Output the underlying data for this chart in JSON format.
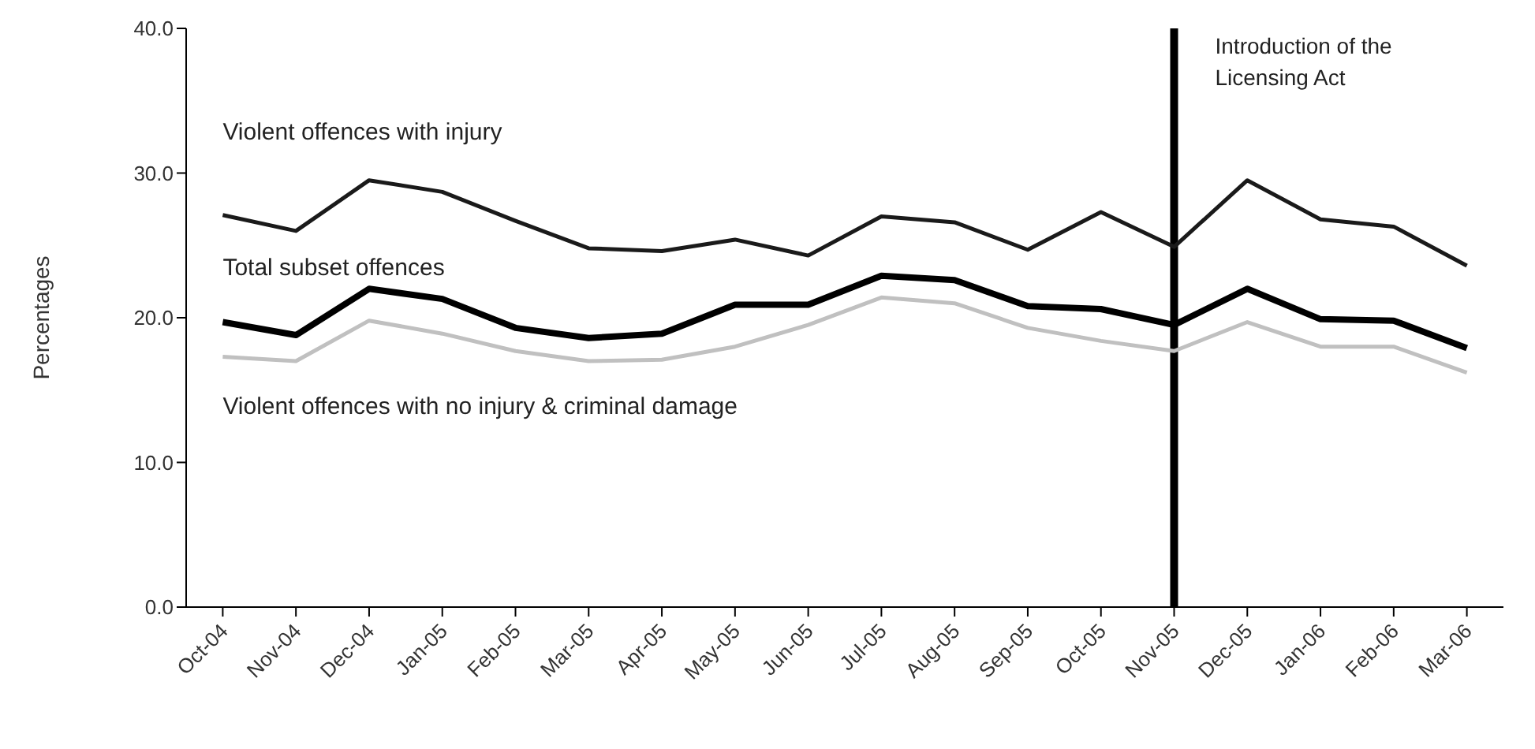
{
  "chart_data": {
    "type": "line",
    "ylabel": "Percentages",
    "categories": [
      "Oct-04",
      "Nov-04",
      "Dec-04",
      "Jan-05",
      "Feb-05",
      "Mar-05",
      "Apr-05",
      "May-05",
      "Jun-05",
      "Jul-05",
      "Aug-05",
      "Sep-05",
      "Oct-05",
      "Nov-05",
      "Dec-05",
      "Jan-06",
      "Feb-06",
      "Mar-06"
    ],
    "series": [
      {
        "name": "Violent offences with injury",
        "color": "#1a1a1a",
        "values": [
          27.1,
          26.0,
          29.5,
          28.7,
          26.7,
          24.8,
          24.6,
          25.4,
          24.3,
          27.0,
          26.6,
          24.7,
          27.3,
          24.9,
          29.5,
          26.8,
          26.3,
          23.6
        ]
      },
      {
        "name": "Total subset offences",
        "color": "#000000",
        "values": [
          19.7,
          18.8,
          22.0,
          21.3,
          19.3,
          18.6,
          18.9,
          20.9,
          20.9,
          22.9,
          22.6,
          20.8,
          20.6,
          19.5,
          22.0,
          19.9,
          19.8,
          17.9
        ]
      },
      {
        "name": "Violent offences with no injury & criminal damage",
        "color": "#c0c0c0",
        "values": [
          17.3,
          17.0,
          19.8,
          18.9,
          17.7,
          17.0,
          17.1,
          18.0,
          19.5,
          21.4,
          21.0,
          19.3,
          18.4,
          17.7,
          19.7,
          18.0,
          18.0,
          16.2
        ]
      }
    ],
    "ylim": [
      0,
      40
    ],
    "yticks": [
      {
        "value": 0,
        "label": "0.0"
      },
      {
        "value": 10,
        "label": "10.0"
      },
      {
        "value": 20,
        "label": "20.0"
      },
      {
        "value": 30,
        "label": "30.0"
      },
      {
        "value": 40,
        "label": "40.0"
      }
    ],
    "ref_lines": [
      {
        "axis": "x",
        "value": "Nov-05",
        "label": "Introduction of the Licensing Act",
        "color": "#000000"
      }
    ],
    "grid": false,
    "legend": false,
    "marker": "none",
    "line_style": "solid"
  }
}
